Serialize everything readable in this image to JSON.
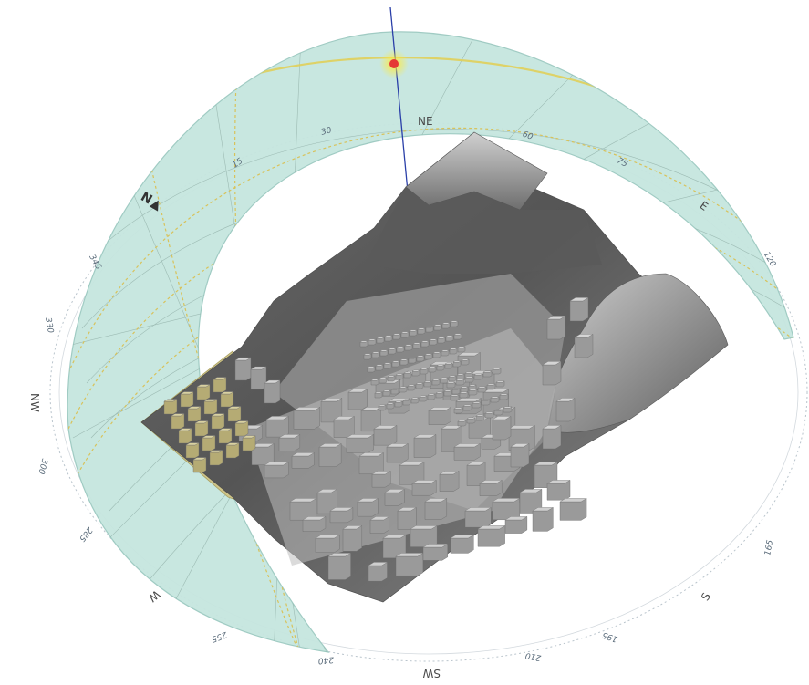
{
  "compass": {
    "north_label": "N",
    "north_marker": "▲",
    "directions": [
      "NE",
      "E",
      "S",
      "SW",
      "W",
      "NW"
    ],
    "degree_labels": [
      "15",
      "30",
      "60",
      "75",
      "120",
      "165",
      "195",
      "210",
      "240",
      "255",
      "285",
      "300",
      "330",
      "345"
    ]
  },
  "sun": {
    "color": "#e53935",
    "glow": "#ffd54f"
  },
  "colors": {
    "sky_band": "#bfe2dc",
    "sky_band_stroke": "#9bc9c0",
    "sunpath_line": "#d8c25a",
    "grid_line": "#8aa8a0",
    "terrain_dark": "#4b4b4b",
    "terrain_mid": "#7a7a7a",
    "terrain_light": "#bdbdbd",
    "buildings": "#9e9e9e",
    "highlight_zone": "#cfc58a",
    "north_axis": "#2a3fa8"
  },
  "icons": {
    "sun_marker": "sun-position-icon",
    "north_arrow": "north-arrow-icon"
  }
}
